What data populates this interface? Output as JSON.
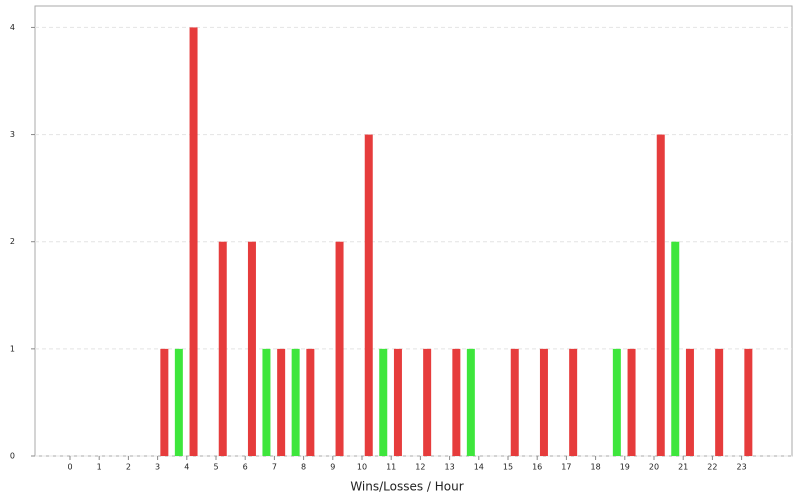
{
  "chart_data": {
    "type": "bar",
    "x_label": "Wins/Losses / Hour",
    "categories": [
      "0",
      "1",
      "2",
      "3",
      "4",
      "5",
      "6",
      "7",
      "8",
      "9",
      "10",
      "11",
      "12",
      "13",
      "14",
      "15",
      "16",
      "17",
      "18",
      "19",
      "20",
      "21",
      "22",
      "23"
    ],
    "series": [
      {
        "color": "#e63c3c",
        "values": [
          0,
          0,
          0,
          1,
          4,
          2,
          2,
          1,
          1,
          2,
          3,
          1,
          1,
          1,
          0,
          1,
          1,
          1,
          0,
          1,
          3,
          1,
          1,
          1
        ]
      },
      {
        "color": "#3ee63c",
        "values": [
          0,
          0,
          0,
          1,
          0,
          0,
          1,
          1,
          0,
          0,
          1,
          0,
          0,
          1,
          0,
          0,
          0,
          0,
          1,
          0,
          2,
          0,
          0,
          0
        ]
      }
    ],
    "ylim": [
      0,
      4.2
    ],
    "yticks": [
      0,
      1,
      2,
      3,
      4
    ],
    "grid": true
  }
}
